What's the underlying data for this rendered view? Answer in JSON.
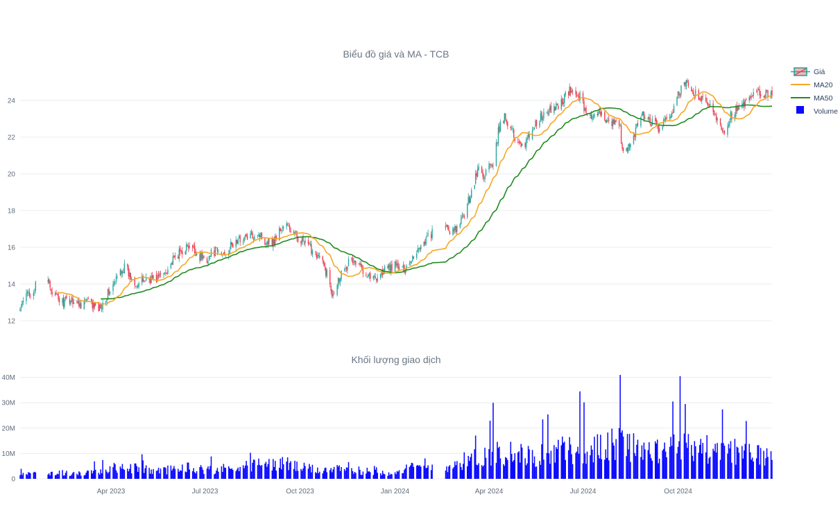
{
  "chart_data": [
    {
      "type": "candlestick",
      "title": "Biểu đồ giá và MA - TCB",
      "ylim": [
        12,
        25.2
      ],
      "y_ticks": [
        "12",
        "14",
        "16",
        "18",
        "20",
        "22",
        "24"
      ],
      "x_ticks": [
        "Apr 2023",
        "Jul 2023",
        "Oct 2023",
        "Jan 2024",
        "Apr 2024",
        "Jul 2024",
        "Oct 2024"
      ],
      "x_range": [
        "2023-01-03",
        "2024-12-31"
      ],
      "price_path": [
        [
          "2023-01-03",
          12.6
        ],
        [
          "2023-01-10",
          13.5
        ],
        [
          "2023-01-17",
          13.7
        ],
        [
          "2023-01-20",
          14.2
        ],
        [
          "2023-01-30",
          14.1
        ],
        [
          "2023-02-06",
          13.3
        ],
        [
          "2023-02-14",
          13.0
        ],
        [
          "2023-02-22",
          13.2
        ],
        [
          "2023-03-01",
          12.9
        ],
        [
          "2023-03-08",
          13.1
        ],
        [
          "2023-03-15",
          12.8
        ],
        [
          "2023-03-21",
          12.7
        ],
        [
          "2023-03-28",
          13.4
        ],
        [
          "2023-04-04",
          14.0
        ],
        [
          "2023-04-10",
          14.7
        ],
        [
          "2023-04-14",
          14.9
        ],
        [
          "2023-04-20",
          14.4
        ],
        [
          "2023-04-27",
          14.0
        ],
        [
          "2023-05-05",
          14.3
        ],
        [
          "2023-05-15",
          14.3
        ],
        [
          "2023-05-22",
          14.6
        ],
        [
          "2023-05-29",
          15.1
        ],
        [
          "2023-06-05",
          15.6
        ],
        [
          "2023-06-12",
          16.0
        ],
        [
          "2023-06-19",
          15.9
        ],
        [
          "2023-06-26",
          15.5
        ],
        [
          "2023-07-03",
          15.4
        ],
        [
          "2023-07-10",
          15.8
        ],
        [
          "2023-07-17",
          15.6
        ],
        [
          "2023-07-24",
          15.9
        ],
        [
          "2023-07-31",
          16.3
        ],
        [
          "2023-08-07",
          16.5
        ],
        [
          "2023-08-14",
          16.6
        ],
        [
          "2023-08-21",
          16.8
        ],
        [
          "2023-08-28",
          16.4
        ],
        [
          "2023-09-05",
          16.3
        ],
        [
          "2023-09-12",
          17.0
        ],
        [
          "2023-09-18",
          17.2
        ],
        [
          "2023-09-25",
          16.7
        ],
        [
          "2023-10-02",
          16.4
        ],
        [
          "2023-10-09",
          16.0
        ],
        [
          "2023-10-16",
          15.8
        ],
        [
          "2023-10-23",
          15.1
        ],
        [
          "2023-10-27",
          14.6
        ],
        [
          "2023-11-01",
          13.5
        ],
        [
          "2023-11-06",
          14.1
        ],
        [
          "2023-11-13",
          15.0
        ],
        [
          "2023-11-20",
          15.3
        ],
        [
          "2023-11-27",
          15.0
        ],
        [
          "2023-12-04",
          14.7
        ],
        [
          "2023-12-11",
          14.3
        ],
        [
          "2023-12-18",
          14.6
        ],
        [
          "2023-12-25",
          14.9
        ],
        [
          "2024-01-02",
          15.0
        ],
        [
          "2024-01-09",
          14.8
        ],
        [
          "2024-01-16",
          15.3
        ],
        [
          "2024-01-23",
          15.9
        ],
        [
          "2024-01-30",
          16.4
        ],
        [
          "2024-02-06",
          16.8
        ],
        [
          "2024-02-20",
          17.0
        ],
        [
          "2024-02-27",
          16.8
        ],
        [
          "2024-03-05",
          17.4
        ],
        [
          "2024-03-11",
          18.3
        ],
        [
          "2024-03-18",
          19.6
        ],
        [
          "2024-03-22",
          20.4
        ],
        [
          "2024-03-26",
          19.8
        ],
        [
          "2024-04-01",
          20.5
        ],
        [
          "2024-04-05",
          20.2
        ],
        [
          "2024-04-10",
          22.3
        ],
        [
          "2024-04-16",
          23.1
        ],
        [
          "2024-04-22",
          22.6
        ],
        [
          "2024-04-26",
          21.9
        ],
        [
          "2024-05-06",
          21.6
        ],
        [
          "2024-05-13",
          22.5
        ],
        [
          "2024-05-20",
          23.0
        ],
        [
          "2024-05-27",
          23.3
        ],
        [
          "2024-06-03",
          23.6
        ],
        [
          "2024-06-10",
          23.9
        ],
        [
          "2024-06-17",
          24.5
        ],
        [
          "2024-06-24",
          24.4
        ],
        [
          "2024-06-28",
          24.2
        ],
        [
          "2024-07-04",
          23.4
        ],
        [
          "2024-07-11",
          23.0
        ],
        [
          "2024-07-18",
          23.2
        ],
        [
          "2024-07-25",
          23.0
        ],
        [
          "2024-08-01",
          22.7
        ],
        [
          "2024-08-06",
          22.4
        ],
        [
          "2024-08-09",
          21.0
        ],
        [
          "2024-08-15",
          21.5
        ],
        [
          "2024-08-22",
          22.6
        ],
        [
          "2024-08-28",
          23.2
        ],
        [
          "2024-09-05",
          22.8
        ],
        [
          "2024-09-12",
          22.5
        ],
        [
          "2024-09-19",
          22.8
        ],
        [
          "2024-09-26",
          23.5
        ],
        [
          "2024-10-03",
          24.5
        ],
        [
          "2024-10-08",
          24.9
        ],
        [
          "2024-10-15",
          24.5
        ],
        [
          "2024-10-22",
          24.1
        ],
        [
          "2024-10-29",
          23.8
        ],
        [
          "2024-11-05",
          23.4
        ],
        [
          "2024-11-12",
          22.6
        ],
        [
          "2024-11-15",
          22.3
        ],
        [
          "2024-11-21",
          23.2
        ],
        [
          "2024-11-28",
          23.5
        ],
        [
          "2024-12-05",
          23.8
        ],
        [
          "2024-12-12",
          24.2
        ],
        [
          "2024-12-19",
          24.4
        ],
        [
          "2024-12-26",
          24.3
        ],
        [
          "2024-12-31",
          24.5
        ]
      ],
      "series": [
        {
          "name": "Giá",
          "type": "candlestick",
          "up_color": "#26a69a",
          "down_color": "#ef3b4f"
        },
        {
          "name": "MA20",
          "type": "line",
          "window": 20,
          "color": "#f5a623"
        },
        {
          "name": "MA50",
          "type": "line",
          "window": 50,
          "color": "#1f8a1f"
        }
      ]
    },
    {
      "type": "bar",
      "title": "Khối lượng giao dịch",
      "ylim": [
        0,
        41000000
      ],
      "y_ticks": [
        "0",
        "10M",
        "20M",
        "30M",
        "40M"
      ],
      "series": [
        {
          "name": "Volume",
          "color": "#0a0aff"
        }
      ],
      "volume_levels": [
        [
          "2023-01-03",
          2800000
        ],
        [
          "2023-03-01",
          2200000
        ],
        [
          "2023-03-28",
          3500000
        ],
        [
          "2023-04-10",
          5500000
        ],
        [
          "2023-05-15",
          3200000
        ],
        [
          "2023-06-12",
          5000000
        ],
        [
          "2023-07-10",
          3800000
        ],
        [
          "2023-08-07",
          5500000
        ],
        [
          "2023-09-12",
          6500000
        ],
        [
          "2023-10-09",
          4200000
        ],
        [
          "2023-11-01",
          4000000
        ],
        [
          "2023-11-27",
          3500000
        ],
        [
          "2023-12-25",
          2600000
        ],
        [
          "2024-01-16",
          4500000
        ],
        [
          "2024-02-20",
          5500000
        ],
        [
          "2024-03-11",
          8000000
        ],
        [
          "2024-04-10",
          11500000
        ],
        [
          "2024-05-13",
          9500000
        ],
        [
          "2024-06-10",
          12000000
        ],
        [
          "2024-07-11",
          12500000
        ],
        [
          "2024-08-09",
          15500000
        ],
        [
          "2024-09-12",
          11000000
        ],
        [
          "2024-10-03",
          14000000
        ],
        [
          "2024-11-12",
          12000000
        ],
        [
          "2024-12-31",
          9500000
        ]
      ],
      "volume_spikes": [
        [
          "2024-04-05",
          30000000
        ],
        [
          "2024-06-28",
          34500000
        ],
        [
          "2024-08-06",
          41000000
        ],
        [
          "2024-09-26",
          30500000
        ],
        [
          "2024-10-03",
          40500000
        ],
        [
          "2024-10-08",
          29500000
        ]
      ]
    }
  ]
}
